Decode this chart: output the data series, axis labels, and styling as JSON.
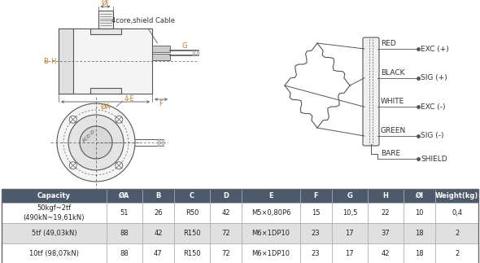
{
  "table_headers": [
    "Capacity",
    "ØA",
    "B",
    "C",
    "D",
    "E",
    "F",
    "G",
    "H",
    "ØI",
    "Weight(kg)"
  ],
  "table_rows": [
    [
      "50kgf~2tf\n(490kN~19,61kN)",
      "51",
      "26",
      "R50",
      "42",
      "M5×0,80P6",
      "15",
      "10,5",
      "22",
      "10",
      "0,4"
    ],
    [
      "5tf (49,03kN)",
      "88",
      "42",
      "R150",
      "72",
      "M6×1DP10",
      "23",
      "17",
      "37",
      "18",
      "2"
    ],
    [
      "10tf (98,07kN)",
      "88",
      "47",
      "R150",
      "72",
      "M6×1DP10",
      "23",
      "17",
      "42",
      "18",
      "2"
    ]
  ],
  "header_bg": "#4d5a6b",
  "header_fg": "#ffffff",
  "row_bg_even": "#ffffff",
  "row_bg_odd": "#e0e0e0",
  "border_color": "#888888",
  "cable_label": "4core,shield Cable",
  "wire_labels": [
    "RED",
    "BLACK",
    "WHITE",
    "GREEN",
    "BARE"
  ],
  "wire_signals": [
    "EXC (+)",
    "SIG (+)",
    "EXC (-)",
    "SIG (-)",
    "SHIELD"
  ],
  "label_color": "#c47a30",
  "line_color": "#555555",
  "dim_color": "#c47a30"
}
